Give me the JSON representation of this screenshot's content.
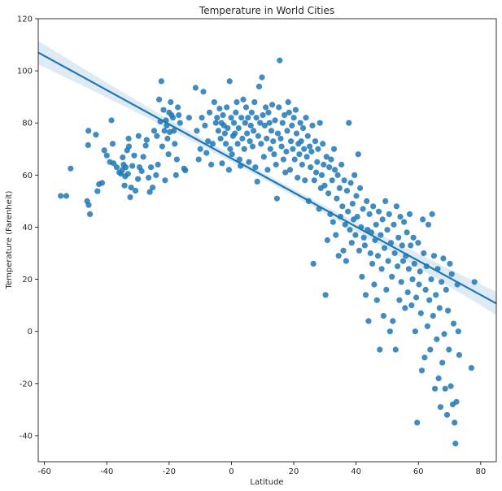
{
  "chart_data": {
    "type": "scatter",
    "title": "Temperature in World Cities",
    "xlabel": "Latitude",
    "ylabel": "Temperature (Farenheit)",
    "xlim": [
      -62,
      85
    ],
    "ylim": [
      -50,
      120
    ],
    "xticks": [
      -60,
      -40,
      -20,
      0,
      20,
      40,
      60,
      80
    ],
    "yticks": [
      -40,
      -20,
      0,
      20,
      40,
      60,
      80,
      100,
      120
    ],
    "grid": false,
    "colors": {
      "points": "#1f77b4",
      "line": "#1f77b4",
      "band": "#1f77b4"
    },
    "regression": {
      "slope": -0.655,
      "intercept": 66.4,
      "ci_halfwidth_at_ends": 4.5,
      "ci_halfwidth_at_center": 1.3
    },
    "points": [
      [
        -54.8,
        52
      ],
      [
        -53,
        52
      ],
      [
        -51.6,
        62.5
      ],
      [
        -46,
        71.5
      ],
      [
        -45.9,
        77
      ],
      [
        -46.3,
        50
      ],
      [
        -45.8,
        48.5
      ],
      [
        -45.4,
        45
      ],
      [
        -43.5,
        75.5
      ],
      [
        -43,
        53.8
      ],
      [
        -42.5,
        56.5
      ],
      [
        -41.5,
        57
      ],
      [
        -40.8,
        69.5
      ],
      [
        -40,
        67.5
      ],
      [
        -39,
        65
      ],
      [
        -38.5,
        81
      ],
      [
        -38.1,
        72
      ],
      [
        -37.8,
        64.5
      ],
      [
        -36.8,
        63
      ],
      [
        -36,
        61
      ],
      [
        -35.4,
        60.5
      ],
      [
        -35,
        62
      ],
      [
        -34.9,
        66.8
      ],
      [
        -34.6,
        64
      ],
      [
        -34.3,
        56
      ],
      [
        -34.1,
        59.5
      ],
      [
        -33.9,
        63
      ],
      [
        -33.5,
        69.5
      ],
      [
        -33,
        74
      ],
      [
        -33.2,
        60.5
      ],
      [
        -32.9,
        71
      ],
      [
        -32.5,
        51.5
      ],
      [
        -32.2,
        55.2
      ],
      [
        -31.8,
        63.5
      ],
      [
        -31.2,
        67.5
      ],
      [
        -30.8,
        54
      ],
      [
        -30,
        58.5
      ],
      [
        -29.8,
        75
      ],
      [
        -29.5,
        63
      ],
      [
        -28.8,
        61.5
      ],
      [
        -28.3,
        67
      ],
      [
        -27.5,
        71.3
      ],
      [
        -27.2,
        73.5
      ],
      [
        -26.6,
        59
      ],
      [
        -26.2,
        53.5
      ],
      [
        -25.8,
        63
      ],
      [
        -25.3,
        55.2
      ],
      [
        -24.8,
        77
      ],
      [
        -24.2,
        60
      ],
      [
        -23.9,
        75
      ],
      [
        -23.6,
        64
      ],
      [
        -23.2,
        89
      ],
      [
        -22.8,
        80.5
      ],
      [
        -22.5,
        96
      ],
      [
        -22.2,
        71
      ],
      [
        -21.8,
        85
      ],
      [
        -21.5,
        77
      ],
      [
        -21.3,
        58
      ],
      [
        -21,
        81
      ],
      [
        -20.8,
        79
      ],
      [
        -20.5,
        74
      ],
      [
        -20.2,
        68
      ],
      [
        -20,
        84
      ],
      [
        -19.8,
        76.5
      ],
      [
        -19.5,
        88
      ],
      [
        -19.2,
        83
      ],
      [
        -18.8,
        82
      ],
      [
        -18.5,
        77
      ],
      [
        -18.2,
        72
      ],
      [
        -17.8,
        60
      ],
      [
        -17.5,
        66
      ],
      [
        -17.2,
        86
      ],
      [
        -16.9,
        83
      ],
      [
        -16.5,
        80
      ],
      [
        -15.2,
        62.5
      ],
      [
        -14.8,
        61.8
      ],
      [
        -13.6,
        82
      ],
      [
        -11.5,
        93.5
      ],
      [
        -11.1,
        77
      ],
      [
        -10.5,
        66
      ],
      [
        -10,
        70
      ],
      [
        -9.5,
        82
      ],
      [
        -9,
        92
      ],
      [
        -8.5,
        79
      ],
      [
        -8,
        68.5
      ],
      [
        -7.5,
        73
      ],
      [
        -7,
        84
      ],
      [
        -6.5,
        64
      ],
      [
        -6,
        72
      ],
      [
        -5.5,
        88
      ],
      [
        -5,
        80
      ],
      [
        -4.6,
        82
      ],
      [
        -4.2,
        77
      ],
      [
        -3.8,
        85.5
      ],
      [
        -3.5,
        74
      ],
      [
        -3.2,
        80
      ],
      [
        -3,
        64.5
      ],
      [
        -2.7,
        83
      ],
      [
        -2.4,
        79
      ],
      [
        -2.1,
        76
      ],
      [
        -1.8,
        72
      ],
      [
        -1.5,
        86
      ],
      [
        -1.2,
        78
      ],
      [
        -0.8,
        62
      ],
      [
        -0.6,
        96
      ],
      [
        -0.4,
        70
      ],
      [
        -0.1,
        82
      ],
      [
        0.2,
        68
      ],
      [
        0.5,
        75
      ],
      [
        0.8,
        80
      ],
      [
        1.1,
        76
      ],
      [
        1.4,
        84
      ],
      [
        1.7,
        88
      ],
      [
        2,
        72
      ],
      [
        2.3,
        78
      ],
      [
        2.6,
        66
      ],
      [
        2.9,
        63.5
      ],
      [
        3.2,
        82
      ],
      [
        3.5,
        74
      ],
      [
        3.8,
        89
      ],
      [
        4.1,
        70
      ],
      [
        4.4,
        80
      ],
      [
        4.7,
        86
      ],
      [
        5,
        76
      ],
      [
        5.3,
        82
      ],
      [
        5.6,
        65
      ],
      [
        5.9,
        73
      ],
      [
        6.2,
        79
      ],
      [
        6.5,
        84
      ],
      [
        6.8,
        71
      ],
      [
        7.1,
        77
      ],
      [
        7.4,
        88
      ],
      [
        7.7,
        63
      ],
      [
        8,
        82
      ],
      [
        8.3,
        57.5
      ],
      [
        8.6,
        75
      ],
      [
        8.9,
        94
      ],
      [
        9.2,
        80
      ],
      [
        9.5,
        72
      ],
      [
        9.8,
        97.5
      ],
      [
        10.1,
        83
      ],
      [
        10.4,
        67
      ],
      [
        10.7,
        79
      ],
      [
        11,
        86
      ],
      [
        11.3,
        74
      ],
      [
        11.6,
        62
      ],
      [
        11.9,
        84
      ],
      [
        12.2,
        80
      ],
      [
        12.5,
        70
      ],
      [
        12.8,
        77
      ],
      [
        13.1,
        87
      ],
      [
        13.4,
        73
      ],
      [
        13.7,
        68
      ],
      [
        14,
        81
      ],
      [
        14.3,
        64
      ],
      [
        14.6,
        51
      ],
      [
        14.9,
        76
      ],
      [
        15.2,
        86
      ],
      [
        15.5,
        104
      ],
      [
        15.8,
        74
      ],
      [
        16.1,
        71
      ],
      [
        16.4,
        80
      ],
      [
        16.7,
        66
      ],
      [
        17,
        83
      ],
      [
        17.3,
        61
      ],
      [
        17.6,
        69
      ],
      [
        17.9,
        77
      ],
      [
        18.2,
        88
      ],
      [
        18.5,
        84
      ],
      [
        18.8,
        62
      ],
      [
        19.1,
        73
      ],
      [
        19.4,
        79
      ],
      [
        19.7,
        70
      ],
      [
        20,
        82
      ],
      [
        20.3,
        66
      ],
      [
        20.6,
        85
      ],
      [
        20.9,
        76
      ],
      [
        21.2,
        59
      ],
      [
        21.5,
        72
      ],
      [
        21.8,
        68
      ],
      [
        22.1,
        80
      ],
      [
        22.4,
        73
      ],
      [
        22.7,
        64
      ],
      [
        23,
        78
      ],
      [
        23.3,
        70
      ],
      [
        23.6,
        58
      ],
      [
        23.9,
        82
      ],
      [
        24.2,
        67
      ],
      [
        24.5,
        75
      ],
      [
        24.8,
        50
      ],
      [
        25.1,
        71
      ],
      [
        25.4,
        63
      ],
      [
        25.7,
        69
      ],
      [
        26,
        79
      ],
      [
        26.3,
        26
      ],
      [
        26.6,
        58
      ],
      [
        26.9,
        73
      ],
      [
        27.2,
        61
      ],
      [
        27.5,
        65
      ],
      [
        27.8,
        70
      ],
      [
        28.1,
        47
      ],
      [
        28.4,
        80
      ],
      [
        28.7,
        55
      ],
      [
        29,
        60
      ],
      [
        29.3,
        72
      ],
      [
        29.6,
        64
      ],
      [
        29.9,
        56
      ],
      [
        30.2,
        14
      ],
      [
        30.5,
        67
      ],
      [
        30.8,
        35
      ],
      [
        31.1,
        53
      ],
      [
        31.4,
        63
      ],
      [
        31.7,
        45
      ],
      [
        32,
        66
      ],
      [
        32.3,
        58
      ],
      [
        32.6,
        42
      ],
      [
        32.9,
        70
      ],
      [
        33.2,
        62
      ],
      [
        33.5,
        37
      ],
      [
        33.8,
        51
      ],
      [
        34.1,
        60
      ],
      [
        34.4,
        29
      ],
      [
        34.7,
        55
      ],
      [
        35,
        44
      ],
      [
        35.3,
        64
      ],
      [
        35.6,
        48
      ],
      [
        35.9,
        31
      ],
      [
        36.2,
        58
      ],
      [
        36.5,
        41
      ],
      [
        36.8,
        27
      ],
      [
        37.1,
        54
      ],
      [
        37.4,
        46
      ],
      [
        37.7,
        80
      ],
      [
        38,
        39
      ],
      [
        38.3,
        57
      ],
      [
        38.6,
        34
      ],
      [
        38.9,
        49
      ],
      [
        39.2,
        43
      ],
      [
        39.5,
        60
      ],
      [
        39.8,
        37
      ],
      [
        40.1,
        52
      ],
      [
        40.4,
        44
      ],
      [
        40.7,
        68
      ],
      [
        41,
        31
      ],
      [
        41.3,
        55
      ],
      [
        41.6,
        40
      ],
      [
        41.9,
        21
      ],
      [
        42.2,
        47
      ],
      [
        42.5,
        36
      ],
      [
        42.8,
        33
      ],
      [
        43.1,
        14
      ],
      [
        43.4,
        50
      ],
      [
        43.7,
        39
      ],
      [
        44,
        4
      ],
      [
        44.3,
        45
      ],
      [
        44.6,
        30
      ],
      [
        44.9,
        38
      ],
      [
        45.2,
        26
      ],
      [
        45.5,
        48
      ],
      [
        45.8,
        18
      ],
      [
        46.1,
        35
      ],
      [
        46.4,
        41
      ],
      [
        46.7,
        12
      ],
      [
        47,
        29
      ],
      [
        47.3,
        46
      ],
      [
        47.6,
        -7
      ],
      [
        47.9,
        37
      ],
      [
        48.2,
        24
      ],
      [
        48.5,
        43
      ],
      [
        48.8,
        6
      ],
      [
        49.1,
        32
      ],
      [
        49.4,
        50
      ],
      [
        49.7,
        16
      ],
      [
        50,
        39
      ],
      [
        50.3,
        27
      ],
      [
        50.6,
        45
      ],
      [
        50.9,
        0
      ],
      [
        51.2,
        34
      ],
      [
        51.5,
        21
      ],
      [
        51.8,
        4
      ],
      [
        52.1,
        41
      ],
      [
        52.4,
        30
      ],
      [
        52.7,
        -7
      ],
      [
        53,
        48
      ],
      [
        53.3,
        25
      ],
      [
        53.6,
        36
      ],
      [
        53.9,
        12
      ],
      [
        54.2,
        44
      ],
      [
        54.5,
        19
      ],
      [
        54.8,
        33
      ],
      [
        55.1,
        27
      ],
      [
        55.4,
        42
      ],
      [
        55.7,
        9
      ],
      [
        56,
        29
      ],
      [
        56.3,
        38
      ],
      [
        56.6,
        15
      ],
      [
        56.9,
        24
      ],
      [
        57.2,
        45
      ],
      [
        57.5,
        33
      ],
      [
        57.8,
        10
      ],
      [
        58.1,
        20
      ],
      [
        58.4,
        36
      ],
      [
        58.7,
        26
      ],
      [
        59,
        0
      ],
      [
        59.3,
        13
      ],
      [
        59.6,
        -35
      ],
      [
        59.9,
        34
      ],
      [
        60.2,
        18
      ],
      [
        60.5,
        23
      ],
      [
        60.8,
        7
      ],
      [
        61.1,
        -15
      ],
      [
        61.4,
        43
      ],
      [
        61.7,
        30
      ],
      [
        62,
        -10
      ],
      [
        62.3,
        16
      ],
      [
        62.6,
        25
      ],
      [
        62.9,
        2
      ],
      [
        63.2,
        41
      ],
      [
        63.5,
        12
      ],
      [
        63.8,
        -7
      ],
      [
        64.1,
        20
      ],
      [
        64.4,
        45
      ],
      [
        64.7,
        6
      ],
      [
        65,
        29
      ],
      [
        65.3,
        -22
      ],
      [
        65.6,
        14
      ],
      [
        65.9,
        -3
      ],
      [
        66.2,
        24
      ],
      [
        66.5,
        -18
      ],
      [
        66.8,
        9
      ],
      [
        67.1,
        -29
      ],
      [
        67.4,
        19
      ],
      [
        67.7,
        -12
      ],
      [
        68,
        28
      ],
      [
        68.3,
        -1
      ],
      [
        68.6,
        -22
      ],
      [
        68.9,
        16
      ],
      [
        69.2,
        -32
      ],
      [
        69.5,
        8
      ],
      [
        69.8,
        -7
      ],
      [
        70.1,
        26
      ],
      [
        70.4,
        -21
      ],
      [
        70.7,
        22
      ],
      [
        71,
        -28
      ],
      [
        71.3,
        3
      ],
      [
        71.6,
        -35
      ],
      [
        71.9,
        -43
      ],
      [
        72.2,
        -27
      ],
      [
        72.5,
        18
      ],
      [
        72.8,
        0
      ],
      [
        73.1,
        -9
      ],
      [
        77,
        -14
      ],
      [
        78,
        19
      ]
    ]
  }
}
